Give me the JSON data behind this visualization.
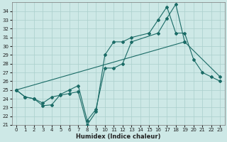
{
  "xlabel": "Humidex (Indice chaleur)",
  "bg_color": "#cde8e6",
  "grid_color": "#aacfcc",
  "line_color": "#1a6b66",
  "xlim": [
    -0.5,
    23.5
  ],
  "ylim": [
    21,
    35
  ],
  "yticks": [
    21,
    22,
    23,
    24,
    25,
    26,
    27,
    28,
    29,
    30,
    31,
    32,
    33,
    34
  ],
  "xticks": [
    0,
    1,
    2,
    3,
    4,
    5,
    6,
    7,
    8,
    9,
    10,
    11,
    12,
    13,
    14,
    15,
    16,
    17,
    18,
    19,
    20,
    21,
    22,
    23
  ],
  "line1_x": [
    0,
    1,
    2,
    3,
    4,
    5,
    6,
    7,
    8,
    9,
    10,
    11,
    12,
    13,
    15,
    16,
    17,
    18,
    19,
    20,
    21,
    22,
    23
  ],
  "line1_y": [
    25.0,
    24.2,
    24.0,
    23.5,
    24.2,
    24.4,
    24.6,
    24.8,
    21.0,
    22.5,
    29.0,
    30.5,
    30.5,
    31.0,
    31.5,
    33.0,
    34.5,
    31.5,
    31.5,
    28.5,
    27.0,
    26.5,
    26.0
  ],
  "line2_x": [
    0,
    1,
    2,
    3,
    4,
    5,
    6,
    7,
    8,
    9,
    10,
    11,
    12,
    13,
    16,
    17,
    18,
    19
  ],
  "line2_y": [
    25.0,
    24.2,
    24.0,
    23.2,
    23.3,
    24.5,
    25.0,
    25.5,
    21.5,
    22.8,
    27.5,
    27.5,
    28.0,
    30.5,
    31.5,
    33.2,
    34.8,
    30.5
  ],
  "line3_x": [
    0,
    19,
    23
  ],
  "line3_y": [
    25.0,
    30.5,
    26.5
  ]
}
